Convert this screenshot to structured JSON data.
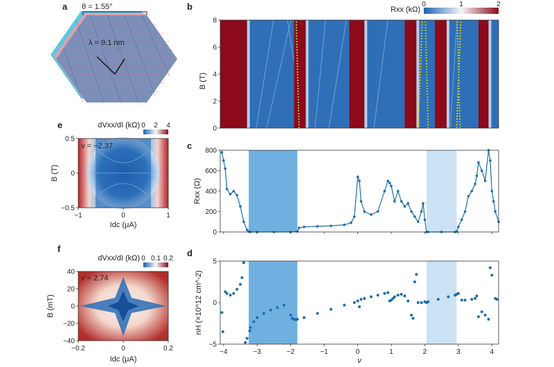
{
  "panel_labels": {
    "a": "a",
    "b": "b",
    "c": "c",
    "d": "d",
    "e": "e",
    "f": "f"
  },
  "panel_a": {
    "theta_label": "θ = 1.55°",
    "lambda_label": "λ = 9.1 nm"
  },
  "colors": {
    "low": "#1f62b0",
    "mid": "#f4f6f9",
    "high": "#8c0a1a",
    "series": "#1a6fa8",
    "shade_dark": "#6fb0e0",
    "shade_light": "#cce2f5",
    "trace_green": "#9acd32",
    "trace_yellow": "#e6c400"
  },
  "chart_data": [
    {
      "id": "b",
      "type": "heatmap",
      "xlabel": "",
      "ylabel": "B (T)",
      "xlim": [
        -4.1,
        4.2
      ],
      "ylim": [
        0,
        8
      ],
      "y_ticks": [
        0,
        2,
        4,
        6,
        8
      ],
      "colorbar": {
        "label": "Rxx (kΩ)",
        "ticks": [
          0,
          1,
          2
        ],
        "range": [
          0,
          2
        ]
      },
      "high_resistance_regions": [
        [
          -4.1,
          -3.3
        ],
        [
          -1.9,
          -1.55
        ],
        [
          -0.25,
          0.2
        ],
        [
          1.4,
          1.75
        ],
        [
          2.3,
          2.65
        ],
        [
          3.6,
          3.9
        ]
      ],
      "traced_lines_nu": [
        -1.75,
        1.8,
        2.1,
        2.95,
        3.05
      ]
    },
    {
      "id": "c",
      "type": "line",
      "xlabel": "",
      "ylabel": "Rxx (Ω)",
      "xlim": [
        -4.1,
        4.2
      ],
      "ylim": [
        0,
        800
      ],
      "x_ticks": [
        -4,
        -3,
        -2,
        -1,
        0,
        1,
        2,
        3,
        4
      ],
      "y_ticks": [
        0,
        200,
        400,
        600,
        800
      ],
      "shaded": [
        {
          "from": -3.25,
          "to": -1.8,
          "shade": "dark"
        },
        {
          "from": 2.05,
          "to": 2.95,
          "shade": "light"
        }
      ],
      "x": [
        -4.05,
        -4.0,
        -3.95,
        -3.9,
        -3.8,
        -3.7,
        -3.6,
        -3.5,
        -3.4,
        -3.3,
        -3.25,
        -3.2,
        -3.0,
        -2.5,
        -2.0,
        -1.8,
        -1.75,
        -1.6,
        -1.2,
        -0.8,
        -0.4,
        -0.2,
        -0.1,
        0.0,
        0.05,
        0.1,
        0.2,
        0.4,
        0.6,
        0.8,
        0.9,
        0.95,
        1.0,
        1.1,
        1.2,
        1.3,
        1.4,
        1.5,
        1.6,
        1.7,
        1.8,
        1.9,
        1.95,
        2.0,
        2.05,
        2.1,
        2.5,
        2.9,
        2.95,
        3.0,
        3.1,
        3.2,
        3.3,
        3.4,
        3.5,
        3.55,
        3.6,
        3.7,
        3.8,
        3.9,
        3.95,
        4.0,
        4.05,
        4.1,
        4.2
      ],
      "y": [
        780,
        700,
        620,
        420,
        370,
        400,
        360,
        250,
        100,
        20,
        3,
        0,
        0,
        0,
        0,
        5,
        40,
        50,
        55,
        60,
        70,
        90,
        150,
        540,
        500,
        300,
        200,
        170,
        200,
        400,
        500,
        480,
        450,
        300,
        400,
        300,
        250,
        280,
        200,
        150,
        100,
        200,
        280,
        120,
        0,
        0,
        0,
        0,
        5,
        50,
        120,
        200,
        350,
        400,
        470,
        550,
        680,
        600,
        500,
        800,
        700,
        400,
        300,
        200,
        100
      ]
    },
    {
      "id": "d",
      "type": "scatter",
      "xlabel": "ν",
      "ylabel": "nH (×10^12 cm^-2)",
      "xlim": [
        -4.1,
        4.2
      ],
      "ylim": [
        -5,
        5
      ],
      "x_ticks": [
        -4,
        -3,
        -2,
        -1,
        0,
        1,
        2,
        3,
        4
      ],
      "y_ticks": [
        -5,
        0,
        5
      ],
      "shaded": [
        {
          "from": -3.25,
          "to": -1.8,
          "shade": "dark"
        },
        {
          "from": 2.05,
          "to": 2.95,
          "shade": "light"
        }
      ],
      "x": [
        -4.05,
        -4.02,
        -3.95,
        -3.9,
        -3.8,
        -3.7,
        -3.6,
        -3.5,
        -3.45,
        -3.4,
        -3.35,
        -3.3,
        -3.22,
        -3.2,
        -3.1,
        -3.0,
        -2.8,
        -2.6,
        -2.4,
        -2.2,
        -2.0,
        -1.95,
        -1.9,
        -1.85,
        -1.8,
        -1.6,
        -1.2,
        -0.8,
        -0.4,
        -0.1,
        0.0,
        0.05,
        0.1,
        0.2,
        0.4,
        0.6,
        0.8,
        0.9,
        0.95,
        1.0,
        1.05,
        1.1,
        1.2,
        1.3,
        1.4,
        1.5,
        1.6,
        1.65,
        1.7,
        1.75,
        1.8,
        1.9,
        2.0,
        2.05,
        2.1,
        2.4,
        2.7,
        2.9,
        2.95,
        3.0,
        3.1,
        3.2,
        3.4,
        3.5,
        3.55,
        3.6,
        3.7,
        3.8,
        3.9,
        3.95,
        4.0,
        4.1,
        4.15
      ],
      "y": [
        -1.2,
        -3.5,
        1.3,
        1.1,
        0.9,
        1.1,
        1.6,
        2.2,
        3.0,
        4.8,
        -4.8,
        -4.3,
        -3.4,
        -3.0,
        -2.3,
        -1.8,
        -1.3,
        -0.9,
        -0.6,
        -0.3,
        -1.5,
        -1.9,
        -2.0,
        -2.05,
        -2.0,
        -1.8,
        -1.3,
        -0.8,
        -0.3,
        0.0,
        0.2,
        -0.5,
        0.4,
        0.5,
        0.7,
        0.9,
        1.1,
        1.2,
        0.2,
        0.3,
        0.5,
        0.7,
        0.9,
        1.0,
        0.8,
        0.2,
        -1.5,
        -1.9,
        2.5,
        3.4,
        0.0,
        0.0,
        0.1,
        0.0,
        0.1,
        0.4,
        0.7,
        0.9,
        1.0,
        1.1,
        0.3,
        0.3,
        0.4,
        0.5,
        0.8,
        -1.7,
        -1.1,
        -1.5,
        -2.0,
        4.2,
        3.3,
        0.5,
        0.4
      ]
    },
    {
      "id": "e",
      "type": "heatmap",
      "xlabel": "Idc (μA)",
      "ylabel": "B (T)",
      "xlim": [
        -1,
        1
      ],
      "ylim": [
        -0.5,
        0.5
      ],
      "x_ticks": [
        -1,
        0,
        1
      ],
      "y_ticks": [
        -0.5,
        0,
        0.5
      ],
      "annotation": "ν = −2.37",
      "colorbar": {
        "label": "dVxx/dI (kΩ)",
        "ticks": [
          0,
          2,
          4
        ],
        "range": [
          0,
          4
        ]
      }
    },
    {
      "id": "f",
      "type": "heatmap",
      "xlabel": "Idc (μA)",
      "ylabel": "B (mT)",
      "xlim": [
        -0.2,
        0.2
      ],
      "ylim": [
        -40,
        40
      ],
      "x_ticks": [
        -0.2,
        0,
        0.2
      ],
      "y_ticks": [
        -40,
        -20,
        0,
        20,
        40
      ],
      "annotation": "ν = 2.74",
      "colorbar": {
        "label": "dVxx/dI (kΩ)",
        "ticks": [
          0,
          0.1,
          0.2
        ],
        "range": [
          0,
          0.2
        ]
      }
    }
  ]
}
